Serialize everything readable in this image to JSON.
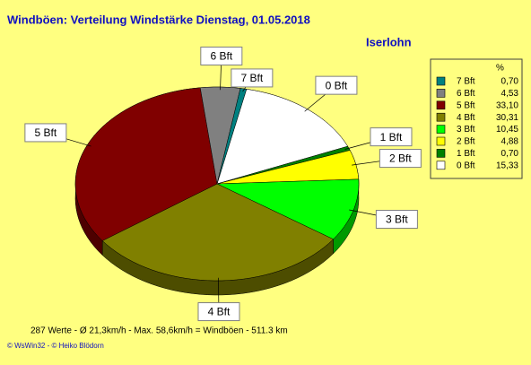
{
  "chart_data": {
    "type": "pie",
    "title": "Windböen: Verteilung Windstärke  Dienstag, 01.05.2018",
    "subtitle": "Iserlohn",
    "legend_title": "%",
    "categories": [
      "0 Bft",
      "1 Bft",
      "2 Bft",
      "3 Bft",
      "4 Bft",
      "5 Bft",
      "6 Bft",
      "7 Bft"
    ],
    "values": [
      15.33,
      0.7,
      4.88,
      10.45,
      30.31,
      33.1,
      4.53,
      0.7
    ],
    "value_labels": [
      "15,33",
      "0,70",
      "4,88",
      "10,45",
      "30,31",
      "33,10",
      "4,53",
      "0,70"
    ],
    "colors": [
      "#ffffff",
      "#008000",
      "#ffff00",
      "#00ff00",
      "#808000",
      "#800000",
      "#808080",
      "#008080"
    ],
    "footer": "287 Werte   -   Ø 21,3km/h  -  Max. 58,6km/h = Windböen   -   511.3 km",
    "credits": "© WsWin32  -  © Heiko Blödorn"
  }
}
